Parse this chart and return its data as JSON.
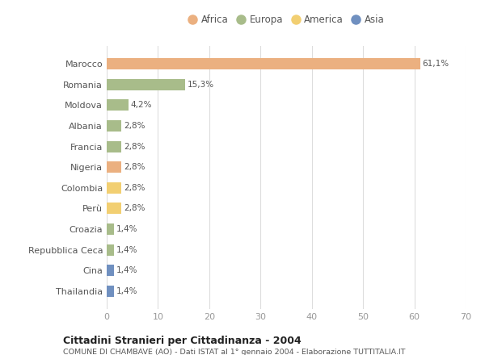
{
  "categories": [
    "Marocco",
    "Romania",
    "Moldova",
    "Albania",
    "Francia",
    "Nigeria",
    "Colombia",
    "Perù",
    "Croazia",
    "Repubblica Ceca",
    "Cina",
    "Thailandia"
  ],
  "values": [
    61.1,
    15.3,
    4.2,
    2.8,
    2.8,
    2.8,
    2.8,
    2.8,
    1.4,
    1.4,
    1.4,
    1.4
  ],
  "labels": [
    "61,1%",
    "15,3%",
    "4,2%",
    "2,8%",
    "2,8%",
    "2,8%",
    "2,8%",
    "2,8%",
    "1,4%",
    "1,4%",
    "1,4%",
    "1,4%"
  ],
  "colors": [
    "#EBB080",
    "#A8BC8A",
    "#A8BC8A",
    "#A8BC8A",
    "#A8BC8A",
    "#EBB080",
    "#F2CF72",
    "#F2CF72",
    "#A8BC8A",
    "#A8BC8A",
    "#7090C0",
    "#7090C0"
  ],
  "xlim": [
    0,
    70
  ],
  "xticks": [
    0,
    10,
    20,
    30,
    40,
    50,
    60,
    70
  ],
  "legend_items": [
    {
      "label": "Africa",
      "color": "#EBB080"
    },
    {
      "label": "Europa",
      "color": "#A8BC8A"
    },
    {
      "label": "America",
      "color": "#F2CF72"
    },
    {
      "label": "Asia",
      "color": "#7090C0"
    }
  ],
  "title": "Cittadini Stranieri per Cittadinanza - 2004",
  "subtitle": "COMUNE DI CHAMBAVE (AO) - Dati ISTAT al 1° gennaio 2004 - Elaborazione TUTTITALIA.IT",
  "bg_color": "#FFFFFF",
  "bar_height": 0.55
}
